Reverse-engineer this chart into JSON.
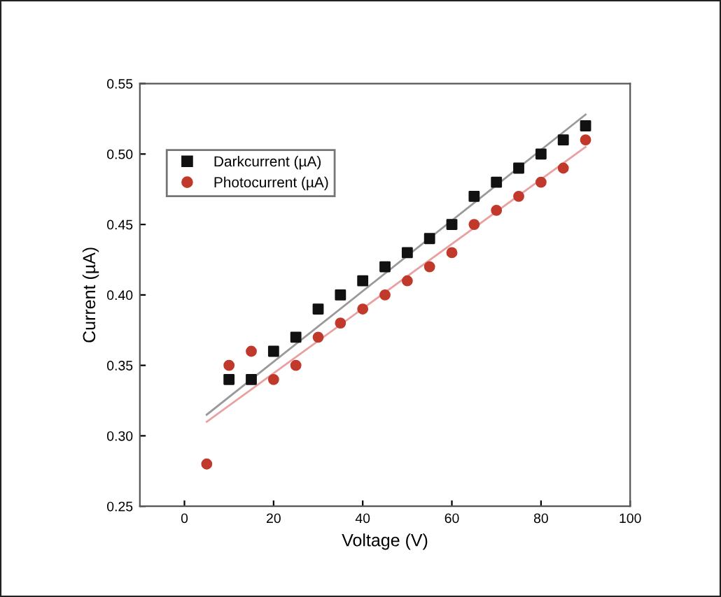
{
  "chart_data": {
    "type": "scatter",
    "xlabel": "Voltage (V)",
    "ylabel": "Current (µA)",
    "xlim": [
      -10,
      100
    ],
    "xticks": [
      0,
      20,
      40,
      60,
      80,
      100
    ],
    "ylim": [
      0.25,
      0.55
    ],
    "yticks": [
      0.25,
      {
        "value": 0.3,
        "label": "0.30"
      },
      0.35,
      {
        "value": 0.4,
        "label": "0.40"
      },
      0.45,
      {
        "value": 0.5,
        "label": "0.50"
      },
      0.55
    ],
    "legend": "top left",
    "grid": false,
    "series": [
      {
        "name": "Darkcurrent (µA)",
        "color": "#111111",
        "marker": "square",
        "x": [
          10,
          15,
          20,
          25,
          30,
          35,
          40,
          45,
          50,
          55,
          60,
          65,
          70,
          75,
          80,
          85,
          90
        ],
        "values": [
          0.34,
          0.34,
          0.36,
          0.37,
          0.39,
          0.4,
          0.41,
          0.42,
          0.43,
          0.44,
          0.45,
          0.47,
          0.48,
          0.49,
          0.5,
          0.51,
          0.52
        ]
      },
      {
        "name": "Photocurrent (µA)",
        "color": "#c0392b",
        "marker": "circle",
        "x": [
          5,
          10,
          15,
          20,
          25,
          30,
          35,
          40,
          45,
          50,
          55,
          60,
          65,
          70,
          75,
          80,
          85,
          90
        ],
        "values": [
          0.28,
          0.35,
          0.36,
          0.34,
          0.35,
          0.37,
          0.38,
          0.39,
          0.4,
          0.41,
          0.42,
          0.43,
          0.45,
          0.46,
          0.47,
          0.48,
          0.49,
          0.51
        ]
      },
      {
        "type": "line",
        "color": "#999999",
        "line_style": "solid",
        "x": [
          5,
          90
        ],
        "values": [
          0.315,
          0.528
        ]
      },
      {
        "type": "line",
        "color": "#e8a0a0",
        "line_style": "solid",
        "x": [
          5,
          90
        ],
        "values": [
          0.31,
          0.505
        ]
      }
    ]
  }
}
